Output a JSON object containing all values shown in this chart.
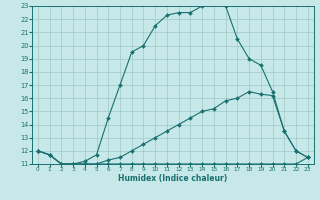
{
  "title": "",
  "xlabel": "Humidex (Indice chaleur)",
  "ylabel": "",
  "bg_color": "#c6e8e8",
  "grid_color": "#a0c8c8",
  "line_color": "#1a7070",
  "xlim": [
    -0.5,
    23.5
  ],
  "ylim": [
    11,
    23
  ],
  "yticks": [
    11,
    12,
    13,
    14,
    15,
    16,
    17,
    18,
    19,
    20,
    21,
    22,
    23
  ],
  "xticks": [
    0,
    1,
    2,
    3,
    4,
    5,
    6,
    7,
    8,
    9,
    10,
    11,
    12,
    13,
    14,
    15,
    16,
    17,
    18,
    19,
    20,
    21,
    22,
    23
  ],
  "series1_x": [
    0,
    1,
    2,
    3,
    4,
    5,
    6,
    7,
    8,
    9,
    10,
    11,
    12,
    13,
    14,
    15,
    16,
    17,
    18,
    19,
    20,
    21,
    22,
    23
  ],
  "series1_y": [
    12.0,
    11.7,
    11.0,
    11.0,
    11.0,
    11.0,
    11.0,
    11.0,
    11.0,
    11.0,
    11.0,
    11.0,
    11.0,
    11.0,
    11.0,
    11.0,
    11.0,
    11.0,
    11.0,
    11.0,
    11.0,
    11.0,
    11.0,
    11.5
  ],
  "series2_x": [
    0,
    1,
    2,
    3,
    4,
    5,
    6,
    7,
    8,
    9,
    10,
    11,
    12,
    13,
    14,
    15,
    16,
    17,
    18,
    19,
    20,
    21,
    22,
    23
  ],
  "series2_y": [
    12.0,
    11.7,
    11.0,
    11.0,
    11.0,
    11.0,
    11.3,
    11.5,
    12.0,
    12.5,
    13.0,
    13.5,
    14.0,
    14.5,
    15.0,
    15.2,
    15.8,
    16.0,
    16.5,
    16.3,
    16.2,
    13.5,
    12.0,
    11.5
  ],
  "series3_x": [
    0,
    1,
    2,
    3,
    4,
    5,
    6,
    7,
    8,
    9,
    10,
    11,
    12,
    13,
    14,
    15,
    16,
    17,
    18,
    19,
    20,
    21,
    22,
    23
  ],
  "series3_y": [
    12.0,
    11.7,
    11.0,
    11.0,
    11.2,
    11.7,
    14.5,
    17.0,
    19.5,
    20.0,
    21.5,
    22.3,
    22.5,
    22.5,
    23.0,
    23.5,
    23.0,
    20.5,
    19.0,
    18.5,
    16.5,
    13.5,
    12.0,
    11.5
  ],
  "marker": "D",
  "markersize": 2.0,
  "linewidth": 0.8
}
